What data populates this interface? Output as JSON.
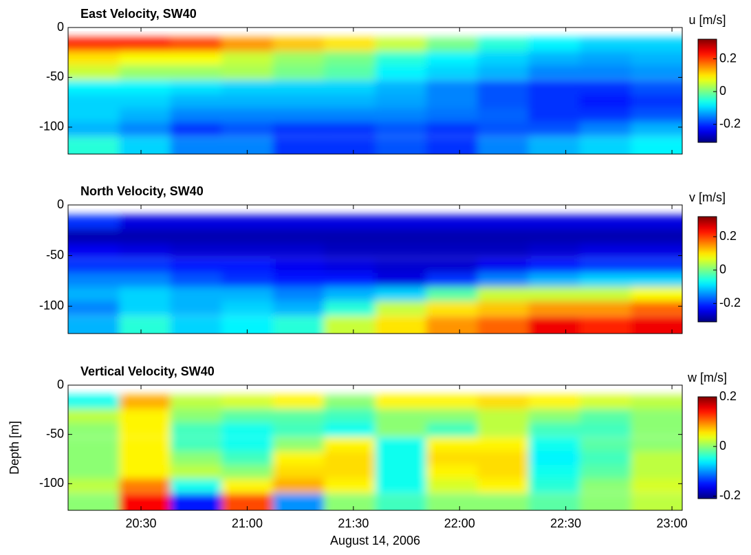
{
  "chart_data": [
    {
      "type": "heatmap",
      "title": "East Velocity, SW40",
      "colorbar_label": "u [m/s]",
      "colormap": "jet",
      "clim": [
        -0.31,
        0.32
      ],
      "cticks": [
        0.2,
        0,
        -0.2
      ],
      "xlim": [
        1209.4,
        1382.9
      ],
      "xticks": [
        1230,
        1260,
        1290,
        1320,
        1350,
        1380
      ],
      "ylim": [
        -127,
        0
      ],
      "yticks": [
        0,
        -50,
        -100
      ],
      "x": [
        1216.6,
        1231.1,
        1245.5,
        1260.0,
        1274.5,
        1288.9,
        1303.4,
        1317.8,
        1332.3,
        1346.7,
        1361.2,
        1375.7
      ],
      "y": [
        -17,
        -31,
        -45,
        -60,
        -74,
        -88,
        -102,
        -117
      ],
      "values": [
        [
          0.22,
          0.22,
          0.2,
          0.15,
          0.12,
          0.1,
          0.05,
          0.0,
          -0.05,
          -0.08,
          -0.1,
          -0.1
        ],
        [
          0.1,
          0.08,
          0.08,
          0.05,
          0.02,
          0.0,
          -0.05,
          -0.08,
          -0.1,
          -0.12,
          -0.13,
          -0.12
        ],
        [
          0.05,
          0.02,
          0.02,
          0.03,
          0.0,
          -0.02,
          -0.08,
          -0.1,
          -0.12,
          -0.15,
          -0.15,
          -0.14
        ],
        [
          -0.08,
          -0.08,
          -0.09,
          -0.1,
          -0.1,
          -0.1,
          -0.12,
          -0.15,
          -0.18,
          -0.2,
          -0.2,
          -0.18
        ],
        [
          -0.1,
          -0.1,
          -0.12,
          -0.12,
          -0.12,
          -0.12,
          -0.13,
          -0.15,
          -0.18,
          -0.2,
          -0.22,
          -0.2
        ],
        [
          -0.1,
          -0.12,
          -0.15,
          -0.15,
          -0.15,
          -0.15,
          -0.15,
          -0.16,
          -0.17,
          -0.2,
          -0.2,
          -0.18
        ],
        [
          -0.12,
          -0.15,
          -0.2,
          -0.18,
          -0.2,
          -0.2,
          -0.18,
          -0.2,
          -0.18,
          -0.18,
          -0.15,
          -0.12
        ],
        [
          -0.05,
          -0.1,
          -0.15,
          -0.15,
          -0.2,
          -0.2,
          -0.18,
          -0.2,
          -0.15,
          -0.12,
          -0.1,
          -0.08
        ]
      ]
    },
    {
      "type": "heatmap",
      "title": "North Velocity, SW40",
      "colorbar_label": "v [m/s]",
      "colormap": "jet",
      "clim": [
        -0.31,
        0.32
      ],
      "cticks": [
        0.2,
        0,
        -0.2
      ],
      "xlim": [
        1209.4,
        1382.9
      ],
      "xticks": [
        1230,
        1260,
        1290,
        1320,
        1350,
        1380
      ],
      "ylim": [
        -127,
        0
      ],
      "yticks": [
        0,
        -50,
        -100
      ],
      "x": [
        1216.6,
        1231.1,
        1245.5,
        1260.0,
        1274.5,
        1288.9,
        1303.4,
        1317.8,
        1332.3,
        1346.7,
        1361.2,
        1375.7
      ],
      "y": [
        -17,
        -31,
        -45,
        -60,
        -74,
        -88,
        -102,
        -117
      ],
      "values": [
        [
          -0.2,
          -0.25,
          -0.25,
          -0.25,
          -0.25,
          -0.25,
          -0.25,
          -0.25,
          -0.25,
          -0.25,
          -0.25,
          -0.25
        ],
        [
          -0.28,
          -0.28,
          -0.28,
          -0.28,
          -0.28,
          -0.28,
          -0.28,
          -0.28,
          -0.28,
          -0.28,
          -0.28,
          -0.28
        ],
        [
          -0.24,
          -0.25,
          -0.26,
          -0.26,
          -0.26,
          -0.27,
          -0.27,
          -0.27,
          -0.27,
          -0.26,
          -0.25,
          -0.25
        ],
        [
          -0.2,
          -0.2,
          -0.22,
          -0.22,
          -0.24,
          -0.25,
          -0.26,
          -0.26,
          -0.24,
          -0.22,
          -0.2,
          -0.2
        ],
        [
          -0.15,
          -0.15,
          -0.18,
          -0.2,
          -0.22,
          -0.22,
          -0.25,
          -0.2,
          -0.15,
          -0.12,
          -0.1,
          -0.1
        ],
        [
          -0.12,
          -0.1,
          -0.12,
          -0.12,
          -0.15,
          -0.12,
          -0.1,
          -0.02,
          0.05,
          0.05,
          0.05,
          0.08
        ],
        [
          -0.15,
          -0.1,
          -0.12,
          -0.1,
          -0.12,
          -0.05,
          0.05,
          0.1,
          0.12,
          0.15,
          0.15,
          0.18
        ],
        [
          -0.12,
          -0.05,
          -0.1,
          -0.08,
          -0.05,
          0.05,
          0.1,
          0.15,
          0.18,
          0.25,
          0.22,
          0.25
        ]
      ]
    },
    {
      "type": "heatmap",
      "title": "Vertical Velocity, SW40",
      "colorbar_label": "w [m/s]",
      "colormap": "jet",
      "clim": [
        -0.21,
        0.2
      ],
      "cticks": [
        0.2,
        0,
        -0.2
      ],
      "xlim": [
        1209.4,
        1382.9
      ],
      "xticks": [
        {
          "value": 1230,
          "label": "20:30"
        },
        {
          "value": 1260,
          "label": "21:00"
        },
        {
          "value": 1290,
          "label": "21:30"
        },
        {
          "value": 1320,
          "label": "22:00"
        },
        {
          "value": 1350,
          "label": "22:30"
        },
        {
          "value": 1380,
          "label": "23:00"
        }
      ],
      "xlabel": "August 14, 2006",
      "ylabel": "Depth [m]",
      "ylim": [
        -127,
        0
      ],
      "yticks": [
        0,
        -50,
        -100
      ],
      "x": [
        1216.6,
        1231.1,
        1245.5,
        1260.0,
        1274.5,
        1288.9,
        1303.4,
        1317.8,
        1332.3,
        1346.7,
        1361.2,
        1375.7
      ],
      "y": [
        -17,
        -31,
        -45,
        -60,
        -74,
        -88,
        -102,
        -117
      ],
      "values": [
        [
          -0.05,
          0.08,
          0.02,
          0.03,
          0.05,
          0.0,
          0.05,
          0.05,
          0.06,
          0.05,
          0.03,
          0.02
        ],
        [
          0.02,
          0.05,
          0.0,
          -0.02,
          -0.02,
          -0.03,
          0.0,
          0.0,
          0.02,
          0.0,
          -0.02,
          0.0
        ],
        [
          0.0,
          0.05,
          -0.03,
          -0.05,
          -0.03,
          -0.05,
          0.0,
          -0.03,
          0.02,
          -0.03,
          -0.03,
          0.0
        ],
        [
          0.0,
          0.05,
          -0.03,
          -0.05,
          0.0,
          0.05,
          -0.05,
          0.05,
          0.05,
          -0.05,
          -0.02,
          0.0
        ],
        [
          0.0,
          0.05,
          0.0,
          -0.03,
          0.05,
          0.06,
          -0.05,
          0.06,
          0.06,
          -0.06,
          -0.03,
          0.02
        ],
        [
          0.0,
          0.05,
          0.02,
          0.0,
          0.06,
          0.06,
          -0.05,
          0.05,
          0.06,
          -0.05,
          -0.02,
          0.02
        ],
        [
          0.02,
          0.1,
          -0.05,
          0.05,
          0.08,
          0.05,
          -0.05,
          0.03,
          0.05,
          -0.04,
          0.0,
          0.03
        ],
        [
          0.0,
          0.15,
          -0.15,
          0.12,
          -0.1,
          0.0,
          -0.03,
          0.0,
          0.0,
          -0.02,
          0.0,
          0.02
        ]
      ]
    }
  ]
}
